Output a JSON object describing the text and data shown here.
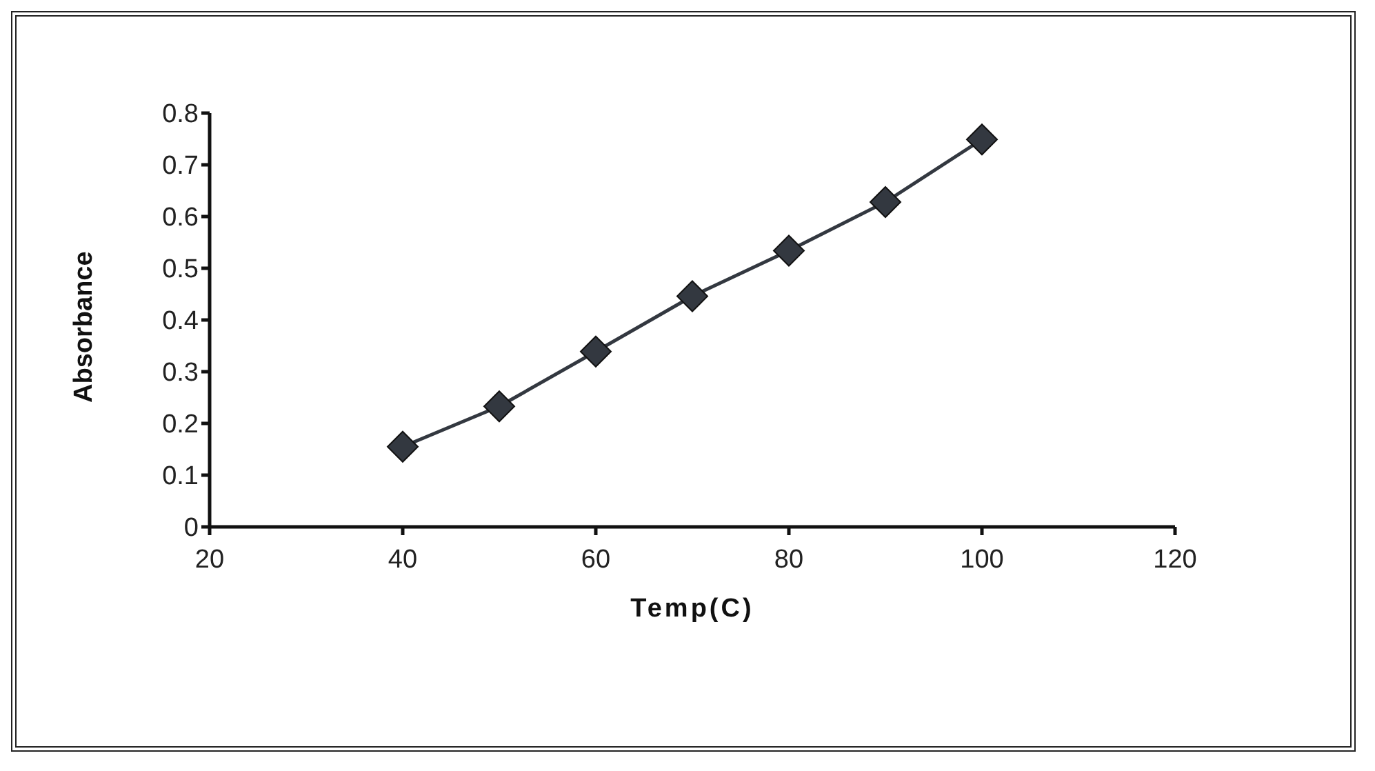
{
  "chart_data": {
    "type": "line",
    "xlabel": "Temp(C)",
    "ylabel": "Absorbance",
    "x": [
      40,
      50,
      60,
      70,
      80,
      90,
      100
    ],
    "series": [
      {
        "color": "#333840",
        "values": [
          0.155,
          0.233,
          0.339,
          0.446,
          0.534,
          0.628,
          0.749
        ]
      }
    ],
    "xlim": [
      20,
      120
    ],
    "xticks": [
      20,
      40,
      60,
      80,
      100,
      120
    ],
    "ylim": [
      0,
      0.8
    ],
    "yticks": [
      0,
      0.1,
      0.2,
      0.3,
      0.4,
      0.5,
      0.6,
      0.7,
      0.8
    ],
    "grid": false,
    "legend": false,
    "marker": "diamond",
    "line_style": "solid"
  }
}
